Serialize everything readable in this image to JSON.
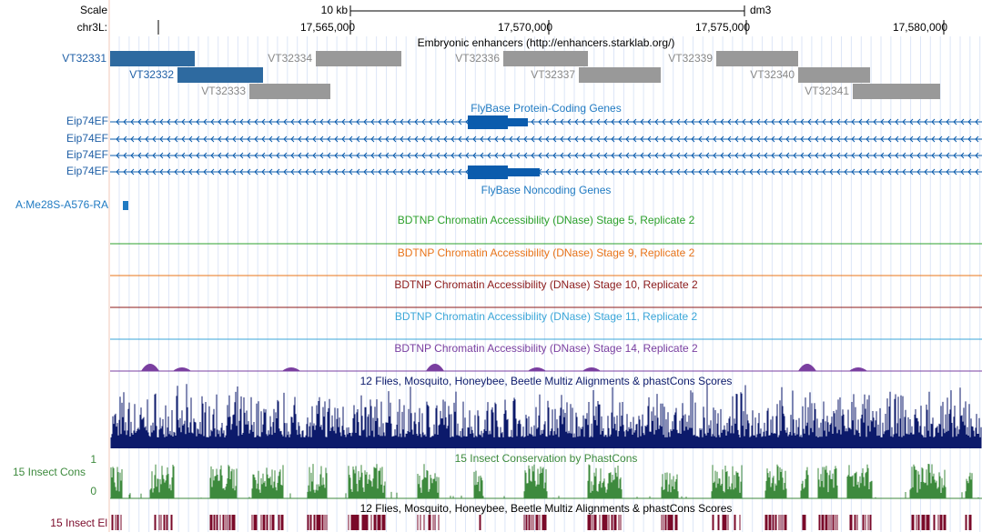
{
  "header": {
    "scale_label": "Scale",
    "scale_bar": "10 kb",
    "assembly": "dm3",
    "chrom": "chr3L:",
    "positions": [
      "17,565,000",
      "17,570,000",
      "17,575,000",
      "17,580,000"
    ]
  },
  "tracks": {
    "enhancers": {
      "title": "Embryonic enhancers (http://enhancers.starklab.org/)",
      "items": [
        "VT32331",
        "VT32332",
        "VT32333",
        "VT32334",
        "VT32336",
        "VT32337",
        "VT32339",
        "VT32340",
        "VT32341"
      ]
    },
    "genes": {
      "title": "FlyBase Protein-Coding Genes",
      "items": [
        "Eip74EF",
        "Eip74EF",
        "Eip74EF",
        "Eip74EF"
      ]
    },
    "noncoding": {
      "title": "FlyBase Noncoding Genes",
      "items": [
        "A:Me28S-A576-RA"
      ]
    },
    "dnase": [
      "BDTNP Chromatin Accessibility (DNase) Stage 5, Replicate 2",
      "BDTNP Chromatin Accessibility (DNase) Stage 9, Replicate 2",
      "BDTNP Chromatin Accessibility (DNase) Stage 10, Replicate 2",
      "BDTNP Chromatin Accessibility (DNase) Stage 11, Replicate 2",
      "BDTNP Chromatin Accessibility (DNase) Stage 14, Replicate 2"
    ],
    "multiz": {
      "title": "12 Flies, Mosquito, Honeybee, Beetle Multiz Alignments & phastCons Scores"
    },
    "phastcons": {
      "title": "15 Insect Conservation by PhastCons",
      "label": "15 Insect Cons",
      "max": 1,
      "min": 0
    },
    "elements": {
      "title": "12 Flies, Mosquito, Honeybee, Beetle Multiz Alignments & phastCons Scores",
      "label": "15 Insect El"
    }
  }
}
